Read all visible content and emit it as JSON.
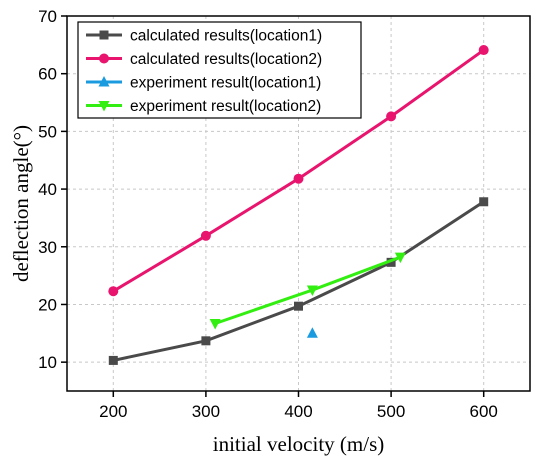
{
  "chart_data": {
    "type": "line",
    "xlabel": "initial velocity (m/s)",
    "ylabel": "deflection angle(°)",
    "xlim": [
      150,
      650
    ],
    "ylim": [
      5,
      70
    ],
    "xticks": [
      200,
      300,
      400,
      500,
      600
    ],
    "yticks": [
      10,
      20,
      30,
      40,
      50,
      60,
      70
    ],
    "grid": true,
    "legend_position": "top-left",
    "series": [
      {
        "name": "calculated results(location1)",
        "marker": "square",
        "color": "#4a4a4a",
        "x": [
          200,
          300,
          400,
          500,
          600
        ],
        "y": [
          10.3,
          13.7,
          19.7,
          27.3,
          37.8
        ]
      },
      {
        "name": "calculated results(location2)",
        "marker": "circle",
        "color": "#e8146e",
        "x": [
          200,
          300,
          400,
          500,
          600
        ],
        "y": [
          22.3,
          31.9,
          41.8,
          52.6,
          64.1
        ]
      },
      {
        "name": "experiment result(location1)",
        "marker": "triangle-up",
        "color": "#1a9be0",
        "x": [
          415
        ],
        "y": [
          15.0
        ]
      },
      {
        "name": "experiment result(location2)",
        "marker": "triangle-down",
        "color": "#33ee11",
        "x": [
          310,
          415,
          510
        ],
        "y": [
          16.7,
          22.5,
          28.2
        ]
      }
    ]
  }
}
